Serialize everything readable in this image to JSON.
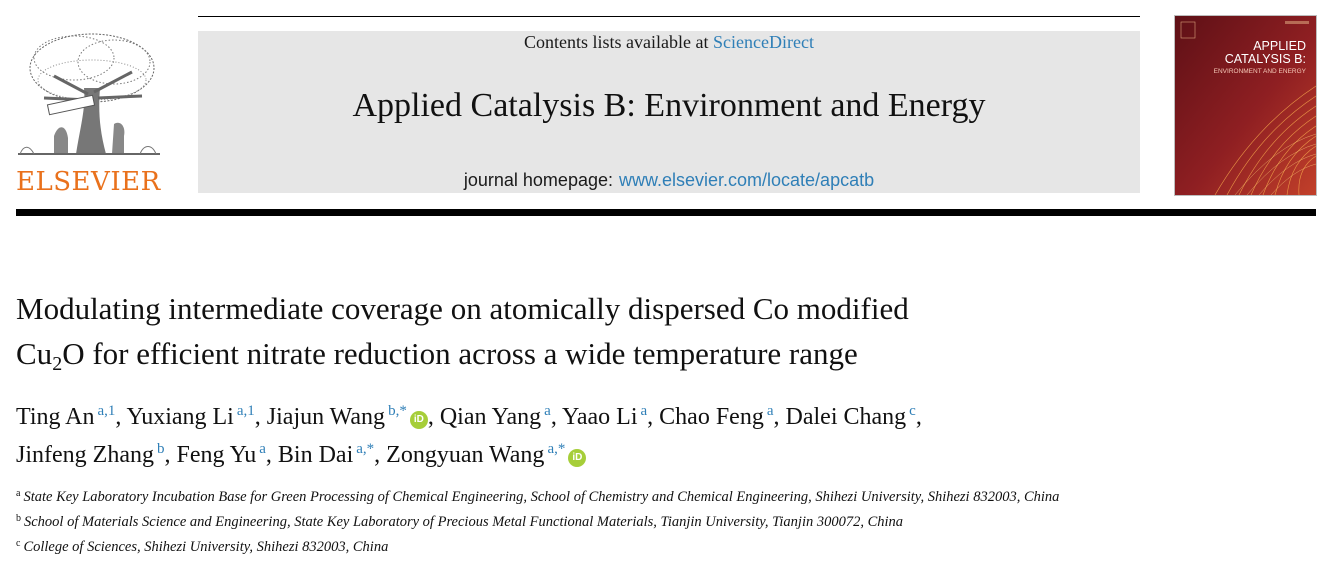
{
  "header": {
    "publisher_logo_text": "ELSEVIER",
    "contents_prefix": "Contents lists available at ",
    "contents_link": "ScienceDirect",
    "journal_title": "Applied Catalysis B: Environment and Energy",
    "homepage_label": "journal homepage:",
    "homepage_url": "www.elsevier.com/locate/apcatb",
    "cover_title_line1": "APPLIED",
    "cover_title_line2": "CATALYSIS B:",
    "cover_subtitle": "ENVIRONMENT AND ENERGY",
    "colors": {
      "publisher_orange": "#e9711c",
      "link_blue": "#2f7fb7",
      "cover_red": "#8a1d24",
      "orcid_green": "#a6ce39"
    }
  },
  "article": {
    "title_line1": "Modulating intermediate coverage on atomically dispersed Co modified",
    "title_line2_pre": "Cu",
    "title_line2_sub": "2",
    "title_line2_post": "O for efficient nitrate reduction across a wide temperature range",
    "authors": [
      {
        "name": "Ting An",
        "sup": "a,1",
        "orcid": false,
        "sep": ", "
      },
      {
        "name": "Yuxiang Li",
        "sup": "a,1",
        "orcid": false,
        "sep": ", "
      },
      {
        "name": "Jiajun Wang",
        "sup": "b,*",
        "orcid": true,
        "sep": ", "
      },
      {
        "name": "Qian Yang",
        "sup": "a",
        "orcid": false,
        "sep": ", "
      },
      {
        "name": "Yaao Li",
        "sup": "a",
        "orcid": false,
        "sep": ", "
      },
      {
        "name": "Chao Feng",
        "sup": "a",
        "orcid": false,
        "sep": ", "
      },
      {
        "name": "Dalei Chang",
        "sup": "c",
        "orcid": false,
        "sep": ", "
      },
      {
        "name": "Jinfeng Zhang",
        "sup": "b",
        "orcid": false,
        "sep": ", "
      },
      {
        "name": "Feng Yu",
        "sup": "a",
        "orcid": false,
        "sep": ", "
      },
      {
        "name": "Bin Dai",
        "sup": "a,*",
        "orcid": false,
        "sep": ", "
      },
      {
        "name": "Zongyuan Wang",
        "sup": "a,*",
        "orcid": true,
        "sep": ""
      }
    ],
    "orcid_glyph": "iD",
    "affiliations": [
      {
        "mark": "a",
        "text": "State Key Laboratory Incubation Base for Green Processing of Chemical Engineering, School of Chemistry and Chemical Engineering, Shihezi University, Shihezi 832003, China"
      },
      {
        "mark": "b",
        "text": "School of Materials Science and Engineering, State Key Laboratory of Precious Metal Functional Materials, Tianjin University, Tianjin 300072, China"
      },
      {
        "mark": "c",
        "text": "College of Sciences, Shihezi University, Shihezi 832003, China"
      }
    ]
  }
}
